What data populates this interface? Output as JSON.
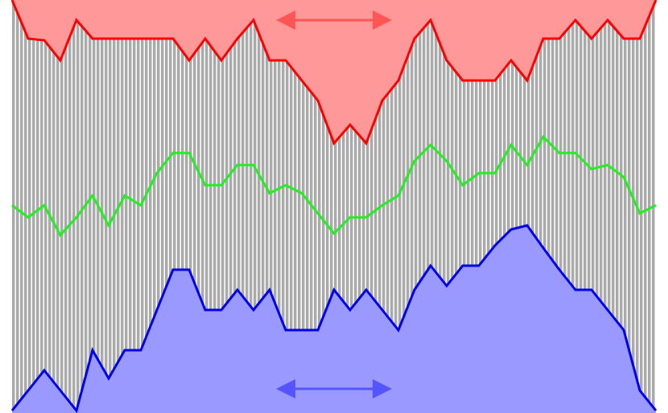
{
  "chart_data": {
    "type": "line",
    "x": [
      0,
      1,
      2,
      3,
      4,
      5,
      6,
      7,
      8,
      9,
      10,
      11,
      12,
      13,
      14,
      15,
      16,
      17,
      18,
      19,
      20,
      21,
      22,
      23,
      24,
      25,
      26,
      27,
      28,
      29,
      30,
      31,
      32,
      33,
      34,
      35,
      36,
      37,
      38,
      39,
      40
    ],
    "xlim": [
      0,
      40
    ],
    "ylim": [
      0,
      513
    ],
    "series": [
      {
        "color": "#ff0000",
        "fill_color": "#ff9999",
        "fill": "above",
        "values": [
          513,
          465,
          463,
          438,
          488,
          465,
          465,
          465,
          465,
          465,
          465,
          438,
          465,
          438,
          465,
          488,
          438,
          438,
          413,
          388,
          335,
          358,
          335,
          388,
          413,
          465,
          488,
          438,
          413,
          413,
          413,
          438,
          413,
          465,
          465,
          488,
          465,
          488,
          465,
          465,
          513
        ]
      },
      {
        "color": "#22ee22",
        "values": [
          258,
          243,
          258,
          221,
          243,
          270,
          233,
          270,
          258,
          298,
          323,
          323,
          283,
          283,
          308,
          308,
          273,
          283,
          273,
          248,
          223,
          243,
          243,
          258,
          270,
          313,
          333,
          313,
          283,
          298,
          298,
          333,
          308,
          343,
          323,
          323,
          303,
          308,
          293,
          248,
          258
        ]
      },
      {
        "color": "#0000ee",
        "fill_color": "#9999ff",
        "fill": "below",
        "values": [
          3,
          28,
          53,
          28,
          3,
          78,
          43,
          78,
          78,
          128,
          178,
          178,
          128,
          128,
          153,
          128,
          153,
          103,
          103,
          103,
          153,
          128,
          153,
          128,
          103,
          153,
          183,
          158,
          183,
          183,
          208,
          228,
          233,
          205,
          178,
          153,
          153,
          128,
          103,
          28,
          3
        ]
      }
    ]
  }
}
